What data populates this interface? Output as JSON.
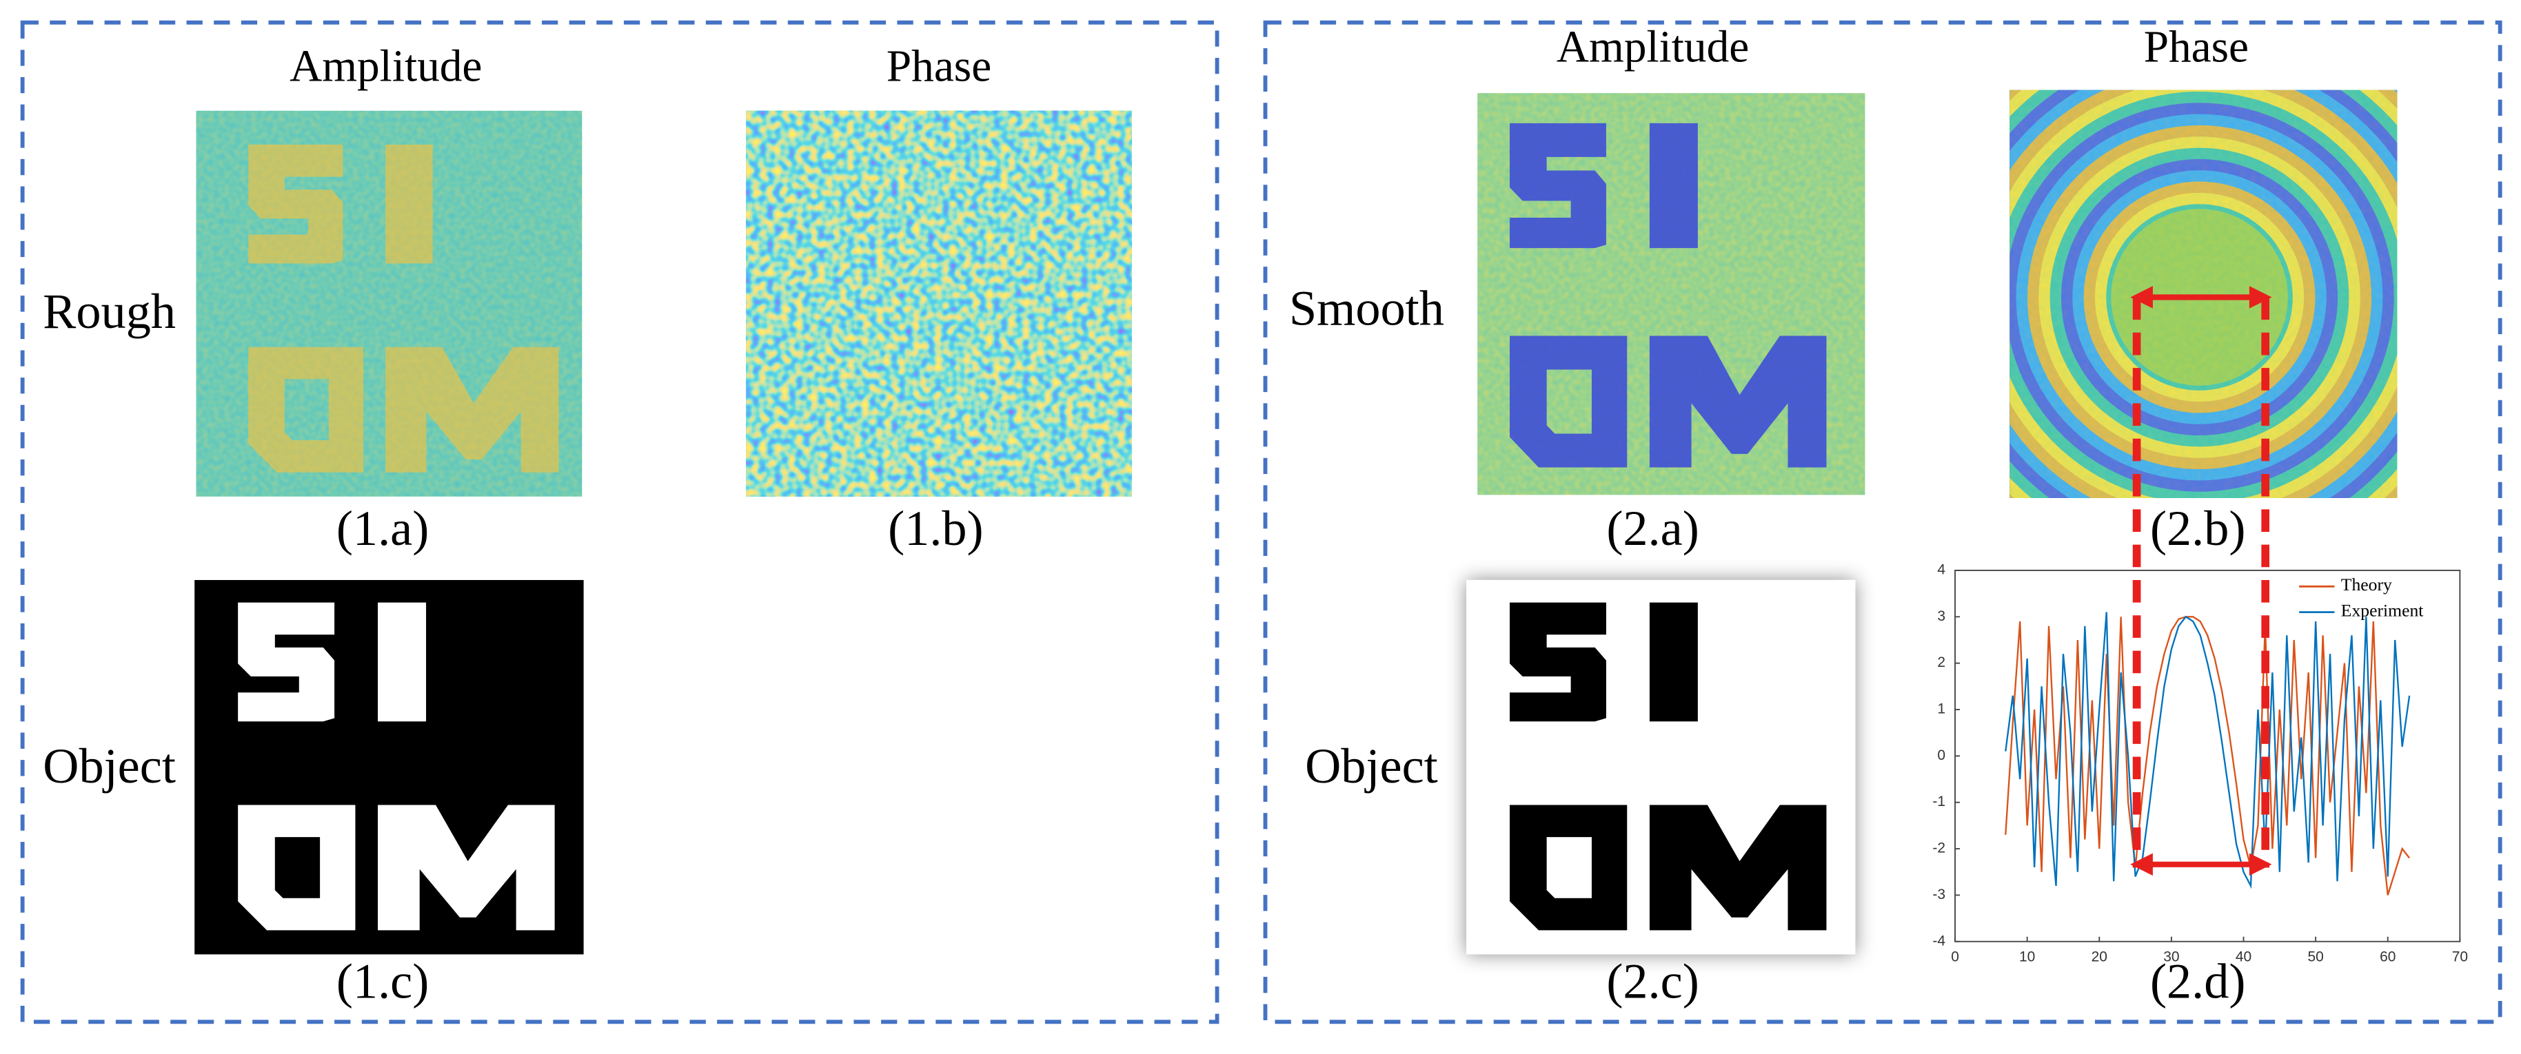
{
  "left_panel": {
    "col_headers": [
      "Amplitude",
      "Phase"
    ],
    "row_labels": [
      "Rough",
      "Object"
    ],
    "captions": [
      "(1.a)",
      "(1.b)",
      "(1.c)"
    ]
  },
  "right_panel": {
    "col_headers": [
      "Amplitude",
      "Phase"
    ],
    "row_labels": [
      "Smooth",
      "Object"
    ],
    "captions": [
      "(2.a)",
      "(2.b)",
      "(2.c)",
      "(2.d)"
    ]
  },
  "chart_data": {
    "type": "line",
    "x": [
      7,
      8,
      9,
      10,
      11,
      12,
      13,
      14,
      15,
      16,
      17,
      18,
      19,
      20,
      21,
      22,
      23,
      24,
      25,
      26,
      27,
      28,
      29,
      30,
      31,
      32,
      33,
      34,
      35,
      36,
      37,
      38,
      39,
      40,
      41,
      42,
      43,
      44,
      45,
      46,
      47,
      48,
      49,
      50,
      51,
      52,
      53,
      54,
      55,
      56,
      57,
      58,
      59,
      60,
      61,
      62,
      63
    ],
    "series": [
      {
        "name": "Theory",
        "color": "#d95319",
        "values": [
          -1.7,
          0.7,
          2.9,
          -1.5,
          1,
          -2.5,
          2.8,
          -0.5,
          1.5,
          -2.2,
          2.5,
          -1.8,
          1.2,
          -2.0,
          2.2,
          -1.5,
          3.0,
          -1.0,
          -2.4,
          -0.8,
          0.5,
          1.5,
          2.2,
          2.7,
          2.95,
          3.0,
          3.0,
          2.9,
          2.6,
          2.1,
          1.4,
          0.5,
          -0.6,
          -1.8,
          -2.4,
          -1.5,
          2.8,
          -2.0,
          1.0,
          -1.5,
          2.5,
          -0.5,
          1.8,
          -2.2,
          2.6,
          -1.0,
          0.5,
          2.0,
          -2.5,
          1.5,
          -0.8,
          2.9,
          -1.5,
          -3.0,
          -2.5,
          -2.0,
          -2.2
        ]
      },
      {
        "name": "Experiment",
        "color": "#0072bd",
        "values": [
          0.1,
          1.3,
          -0.5,
          2.1,
          -2.4,
          1.5,
          -1.0,
          -2.8,
          2.2,
          0.5,
          -2.5,
          2.8,
          -1.2,
          1.0,
          3.1,
          -2.7,
          1.8,
          0.0,
          -2.6,
          -2.2,
          -1.0,
          0.3,
          1.5,
          2.3,
          2.8,
          3.0,
          2.9,
          2.6,
          2.0,
          1.3,
          0.3,
          -0.8,
          -1.9,
          -2.5,
          -2.8,
          1.0,
          -2.0,
          1.8,
          -2.5,
          2.6,
          -1.2,
          0.4,
          -2.3,
          2.9,
          -1.5,
          2.2,
          -2.7,
          0.8,
          2.6,
          -1.3,
          3.0,
          -2.0,
          1.2,
          -2.6,
          2.5,
          0.2,
          1.3
        ]
      }
    ],
    "xlim": [
      0,
      70
    ],
    "xticks": [
      0,
      10,
      20,
      30,
      40,
      50,
      60,
      70
    ],
    "ylim": [
      -4,
      4
    ],
    "yticks": [
      -4,
      -3,
      -2,
      -1,
      0,
      1,
      2,
      3,
      4
    ],
    "legend": "upper right"
  }
}
